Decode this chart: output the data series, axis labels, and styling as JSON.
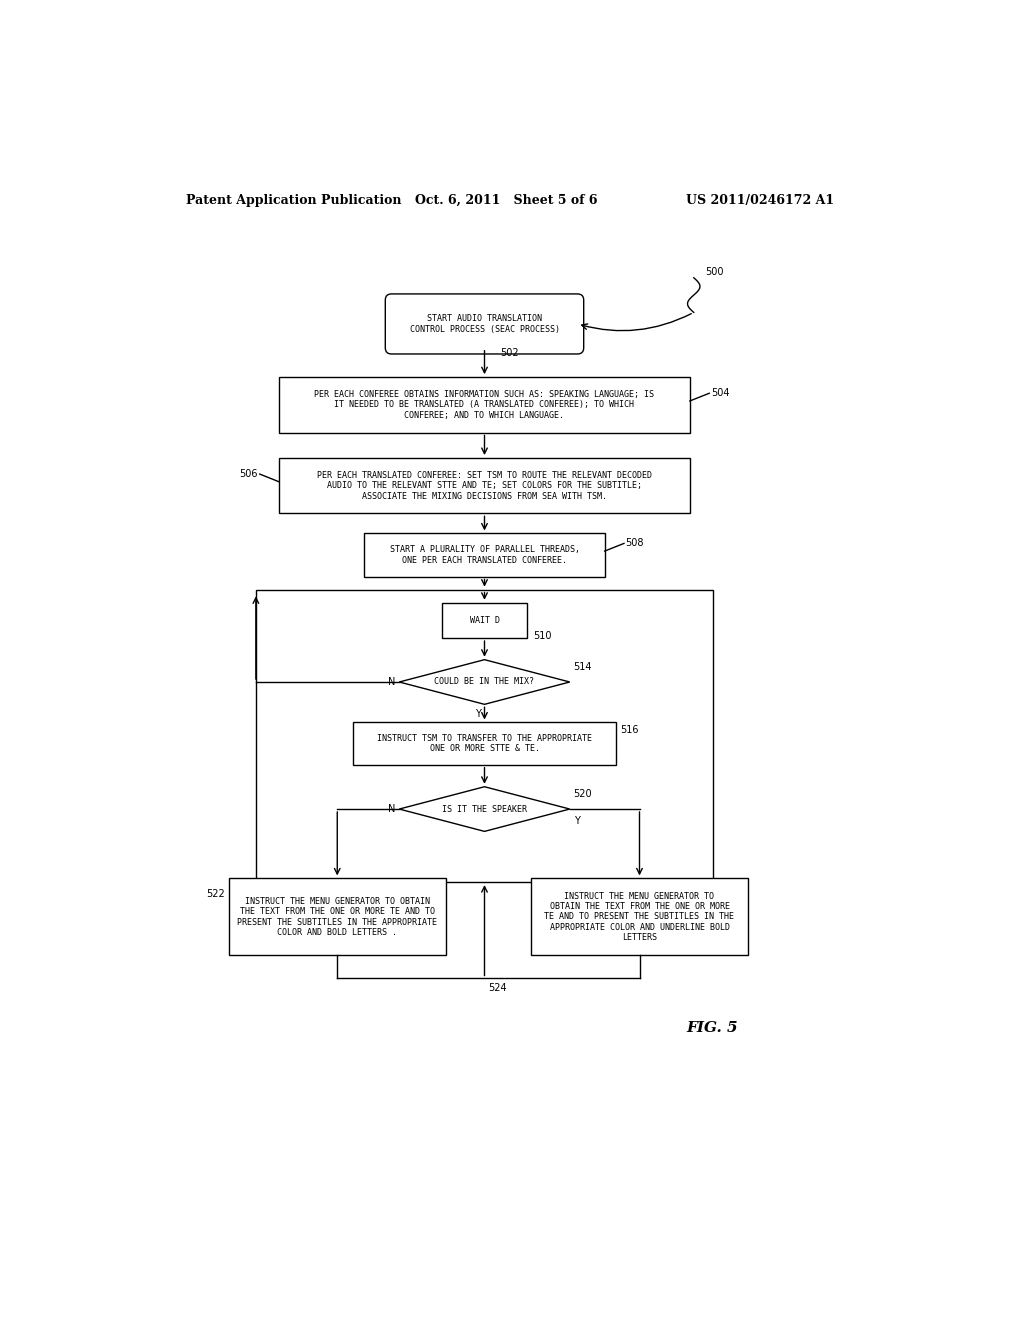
{
  "bg_color": "#ffffff",
  "header_left": "Patent Application Publication",
  "header_mid": "Oct. 6, 2011   Sheet 5 of 6",
  "header_right": "US 2011/0246172 A1",
  "fig_label": "FIG. 5",
  "font_size_nodes": 6.0,
  "font_size_header": 9,
  "font_size_label": 7,
  "lw": 1.0
}
